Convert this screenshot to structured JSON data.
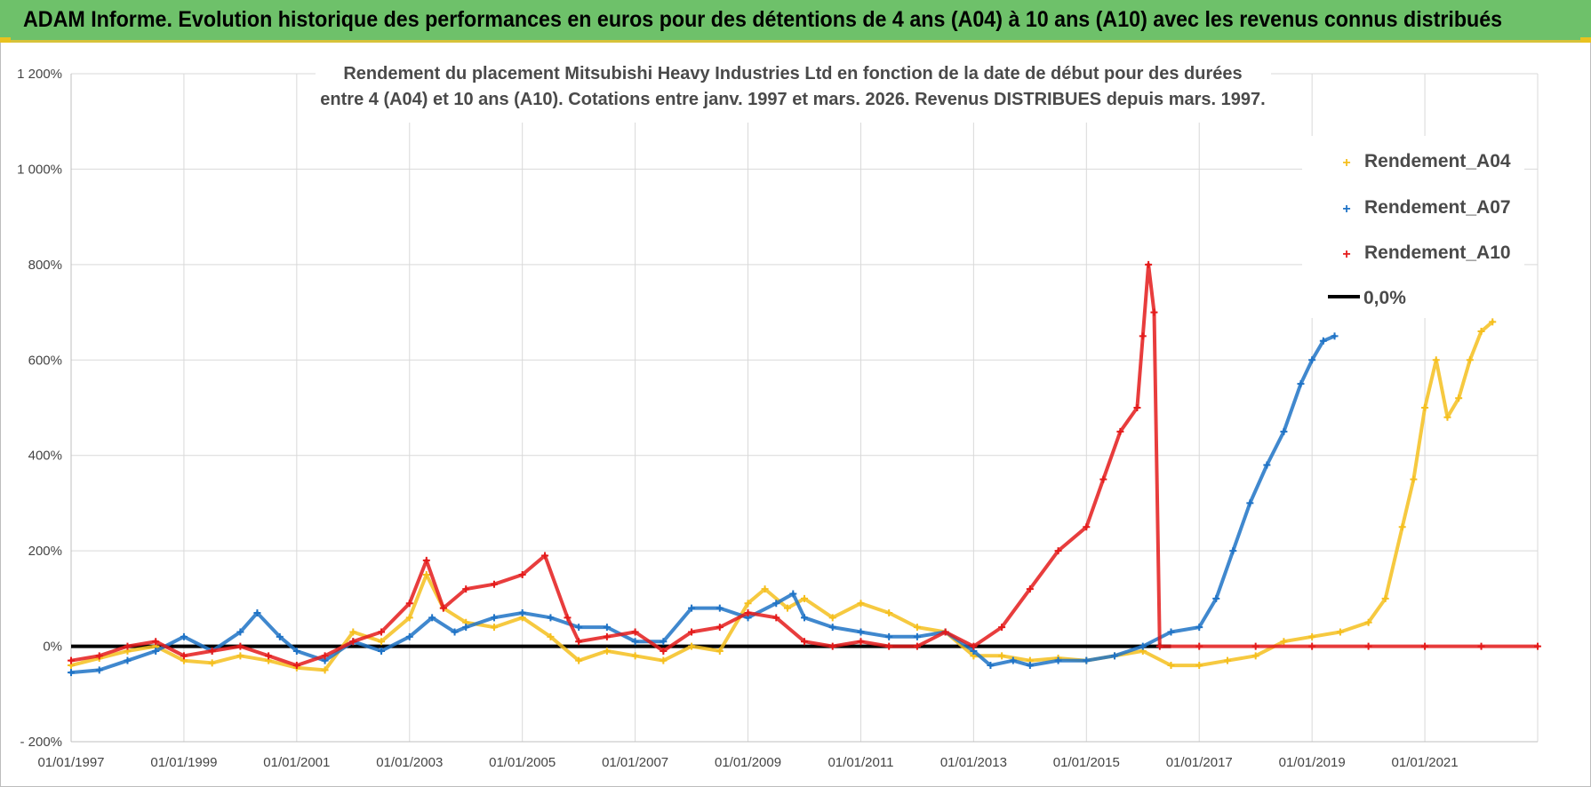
{
  "banner": {
    "title": "ADAM Informe. Evolution historique des performances en euros pour des détentions de 4 ans (A04) à 10 ans (A10) avec les revenus connus distribués"
  },
  "chart_data": {
    "type": "scatter",
    "title_line1": "Rendement du placement Mitsubishi Heavy Industries Ltd en fonction de la date de début pour des durées",
    "title_line2": "entre 4 (A04) et 10 ans (A10). Cotations entre janv. 1997 et mars. 2026. Revenus DISTRIBUES depuis mars. 1997.",
    "xlabel": "",
    "ylabel": "",
    "xlim": [
      1997.0,
      2023.0
    ],
    "ylim": [
      -200,
      1200
    ],
    "y_ticks": [
      {
        "value": -200,
        "label": "- 200%"
      },
      {
        "value": 0,
        "label": "0%"
      },
      {
        "value": 200,
        "label": "200%"
      },
      {
        "value": 400,
        "label": "400%"
      },
      {
        "value": 600,
        "label": "600%"
      },
      {
        "value": 800,
        "label": "800%"
      },
      {
        "value": 1000,
        "label": "1 000%"
      },
      {
        "value": 1200,
        "label": "1 200%"
      }
    ],
    "x_ticks": [
      {
        "value": 1997,
        "label": "01/01/1997"
      },
      {
        "value": 1999,
        "label": "01/01/1999"
      },
      {
        "value": 2001,
        "label": "01/01/2001"
      },
      {
        "value": 2003,
        "label": "01/01/2003"
      },
      {
        "value": 2005,
        "label": "01/01/2005"
      },
      {
        "value": 2007,
        "label": "01/01/2007"
      },
      {
        "value": 2009,
        "label": "01/01/2009"
      },
      {
        "value": 2011,
        "label": "01/01/2011"
      },
      {
        "value": 2013,
        "label": "01/01/2013"
      },
      {
        "value": 2015,
        "label": "01/01/2015"
      },
      {
        "value": 2017,
        "label": "01/01/2017"
      },
      {
        "value": 2019,
        "label": "01/01/2019"
      },
      {
        "value": 2021,
        "label": "01/01/2021"
      }
    ],
    "grid": true,
    "legend_position": "top-right",
    "series": [
      {
        "name": "Rendement_A04",
        "color": "#f5bf1e",
        "marker": "plus",
        "points": [
          [
            1997.0,
            -40
          ],
          [
            1997.5,
            -25
          ],
          [
            1998.0,
            -10
          ],
          [
            1998.5,
            0
          ],
          [
            1999.0,
            -30
          ],
          [
            1999.5,
            -35
          ],
          [
            2000.0,
            -20
          ],
          [
            2000.5,
            -30
          ],
          [
            2001.0,
            -45
          ],
          [
            2001.5,
            -50
          ],
          [
            2002.0,
            30
          ],
          [
            2002.5,
            10
          ],
          [
            2003.0,
            60
          ],
          [
            2003.3,
            150
          ],
          [
            2003.6,
            80
          ],
          [
            2004.0,
            50
          ],
          [
            2004.5,
            40
          ],
          [
            2005.0,
            60
          ],
          [
            2005.5,
            20
          ],
          [
            2006.0,
            -30
          ],
          [
            2006.5,
            -10
          ],
          [
            2007.0,
            -20
          ],
          [
            2007.5,
            -30
          ],
          [
            2008.0,
            0
          ],
          [
            2008.5,
            -10
          ],
          [
            2009.0,
            90
          ],
          [
            2009.3,
            120
          ],
          [
            2009.7,
            80
          ],
          [
            2010.0,
            100
          ],
          [
            2010.5,
            60
          ],
          [
            2011.0,
            90
          ],
          [
            2011.5,
            70
          ],
          [
            2012.0,
            40
          ],
          [
            2012.5,
            30
          ],
          [
            2013.0,
            -20
          ],
          [
            2013.5,
            -20
          ],
          [
            2014.0,
            -30
          ],
          [
            2014.5,
            -25
          ],
          [
            2015.0,
            -30
          ],
          [
            2015.5,
            -20
          ],
          [
            2016.0,
            -10
          ],
          [
            2016.5,
            -40
          ],
          [
            2017.0,
            -40
          ],
          [
            2017.5,
            -30
          ],
          [
            2018.0,
            -20
          ],
          [
            2018.5,
            10
          ],
          [
            2019.0,
            20
          ],
          [
            2019.5,
            30
          ],
          [
            2020.0,
            50
          ],
          [
            2020.3,
            100
          ],
          [
            2020.6,
            250
          ],
          [
            2020.8,
            350
          ],
          [
            2021.0,
            500
          ],
          [
            2021.2,
            600
          ],
          [
            2021.4,
            480
          ],
          [
            2021.6,
            520
          ],
          [
            2021.8,
            600
          ],
          [
            2022.0,
            660
          ],
          [
            2022.2,
            680
          ]
        ]
      },
      {
        "name": "Rendement_A07",
        "color": "#1f73c6",
        "marker": "plus",
        "points": [
          [
            1997.0,
            -55
          ],
          [
            1997.5,
            -50
          ],
          [
            1998.0,
            -30
          ],
          [
            1998.5,
            -10
          ],
          [
            1999.0,
            20
          ],
          [
            1999.5,
            -10
          ],
          [
            2000.0,
            30
          ],
          [
            2000.3,
            70
          ],
          [
            2000.7,
            20
          ],
          [
            2001.0,
            -10
          ],
          [
            2001.5,
            -30
          ],
          [
            2002.0,
            10
          ],
          [
            2002.5,
            -10
          ],
          [
            2003.0,
            20
          ],
          [
            2003.4,
            60
          ],
          [
            2003.8,
            30
          ],
          [
            2004.0,
            40
          ],
          [
            2004.5,
            60
          ],
          [
            2005.0,
            70
          ],
          [
            2005.5,
            60
          ],
          [
            2006.0,
            40
          ],
          [
            2006.5,
            40
          ],
          [
            2007.0,
            10
          ],
          [
            2007.5,
            10
          ],
          [
            2008.0,
            80
          ],
          [
            2008.5,
            80
          ],
          [
            2009.0,
            60
          ],
          [
            2009.5,
            90
          ],
          [
            2009.8,
            110
          ],
          [
            2010.0,
            60
          ],
          [
            2010.5,
            40
          ],
          [
            2011.0,
            30
          ],
          [
            2011.5,
            20
          ],
          [
            2012.0,
            20
          ],
          [
            2012.5,
            30
          ],
          [
            2013.0,
            -10
          ],
          [
            2013.3,
            -40
          ],
          [
            2013.7,
            -30
          ],
          [
            2014.0,
            -40
          ],
          [
            2014.5,
            -30
          ],
          [
            2015.0,
            -30
          ],
          [
            2015.5,
            -20
          ],
          [
            2016.0,
            0
          ],
          [
            2016.5,
            30
          ],
          [
            2017.0,
            40
          ],
          [
            2017.3,
            100
          ],
          [
            2017.6,
            200
          ],
          [
            2017.9,
            300
          ],
          [
            2018.2,
            380
          ],
          [
            2018.5,
            450
          ],
          [
            2018.8,
            550
          ],
          [
            2019.0,
            600
          ],
          [
            2019.2,
            640
          ],
          [
            2019.4,
            650
          ]
        ]
      },
      {
        "name": "Rendement_A10",
        "color": "#e41b1b",
        "marker": "plus",
        "points": [
          [
            1997.0,
            -30
          ],
          [
            1997.5,
            -20
          ],
          [
            1998.0,
            0
          ],
          [
            1998.5,
            10
          ],
          [
            1999.0,
            -20
          ],
          [
            1999.5,
            -10
          ],
          [
            2000.0,
            0
          ],
          [
            2000.5,
            -20
          ],
          [
            2001.0,
            -40
          ],
          [
            2001.5,
            -20
          ],
          [
            2002.0,
            10
          ],
          [
            2002.5,
            30
          ],
          [
            2003.0,
            90
          ],
          [
            2003.3,
            180
          ],
          [
            2003.6,
            80
          ],
          [
            2004.0,
            120
          ],
          [
            2004.5,
            130
          ],
          [
            2005.0,
            150
          ],
          [
            2005.4,
            190
          ],
          [
            2005.8,
            60
          ],
          [
            2006.0,
            10
          ],
          [
            2006.5,
            20
          ],
          [
            2007.0,
            30
          ],
          [
            2007.5,
            -10
          ],
          [
            2008.0,
            30
          ],
          [
            2008.5,
            40
          ],
          [
            2009.0,
            70
          ],
          [
            2009.5,
            60
          ],
          [
            2010.0,
            10
          ],
          [
            2010.5,
            0
          ],
          [
            2011.0,
            10
          ],
          [
            2011.5,
            0
          ],
          [
            2012.0,
            0
          ],
          [
            2012.5,
            30
          ],
          [
            2013.0,
            0
          ],
          [
            2013.5,
            40
          ],
          [
            2014.0,
            120
          ],
          [
            2014.5,
            200
          ],
          [
            2015.0,
            250
          ],
          [
            2015.3,
            350
          ],
          [
            2015.6,
            450
          ],
          [
            2015.9,
            500
          ],
          [
            2016.0,
            650
          ],
          [
            2016.1,
            800
          ],
          [
            2016.2,
            700
          ],
          [
            2016.3,
            0
          ],
          [
            2017.0,
            0
          ],
          [
            2018.0,
            0
          ],
          [
            2019.0,
            0
          ],
          [
            2020.0,
            0
          ],
          [
            2021.0,
            0
          ],
          [
            2022.0,
            0
          ],
          [
            2023.0,
            0
          ]
        ]
      }
    ],
    "reference_line": {
      "name": "0,0%",
      "value": 0,
      "color": "#000000"
    }
  }
}
